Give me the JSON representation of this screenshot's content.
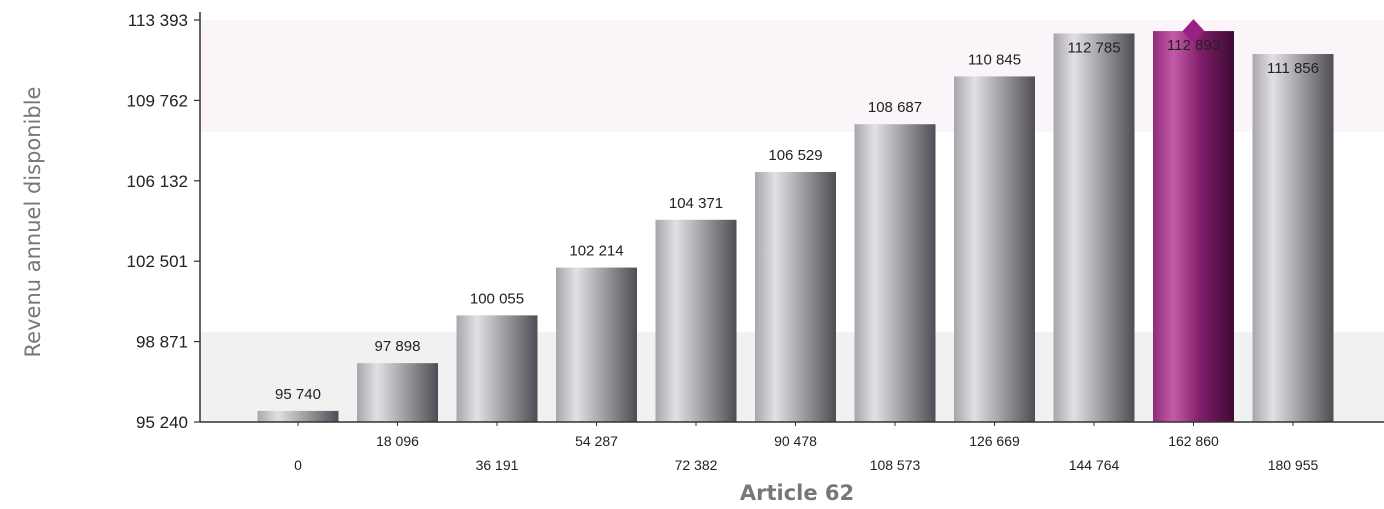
{
  "chart_data": {
    "type": "bar",
    "title": "",
    "xlabel": "Article 62",
    "ylabel": "Revenu annuel disponible",
    "categories": [
      "0",
      "18 096",
      "36 191",
      "54 287",
      "72 382",
      "90 478",
      "108 573",
      "126 669",
      "144 764",
      "162 860",
      "180 955"
    ],
    "values": [
      95740,
      97898,
      100055,
      102214,
      104371,
      106529,
      108687,
      110845,
      112785,
      112893,
      111856
    ],
    "value_labels": [
      "95 740",
      "97 898",
      "100 055",
      "102 214",
      "104 371",
      "106 529",
      "108 687",
      "110 845",
      "112 785",
      "112 893",
      "111 856"
    ],
    "highlighted_index": 9,
    "marker_index": 9,
    "ylim": [
      95240,
      113393
    ],
    "yticks": [
      95240,
      98871,
      102501,
      106132,
      109762,
      113393
    ],
    "ytick_labels": [
      "95 240",
      "98 871",
      "102 501",
      "106 132",
      "109 762",
      "113 393"
    ],
    "grid": false,
    "colors": {
      "bar_light": "#d8d6da",
      "bar_dark": "#55535a",
      "highlight_light": "#c24fa6",
      "highlight_dark": "#4a0f3c",
      "marker": "#9a1f82",
      "band_pink": "#fbf4f8",
      "band_gray": "#f1f1f2",
      "axis": "#333333"
    }
  }
}
